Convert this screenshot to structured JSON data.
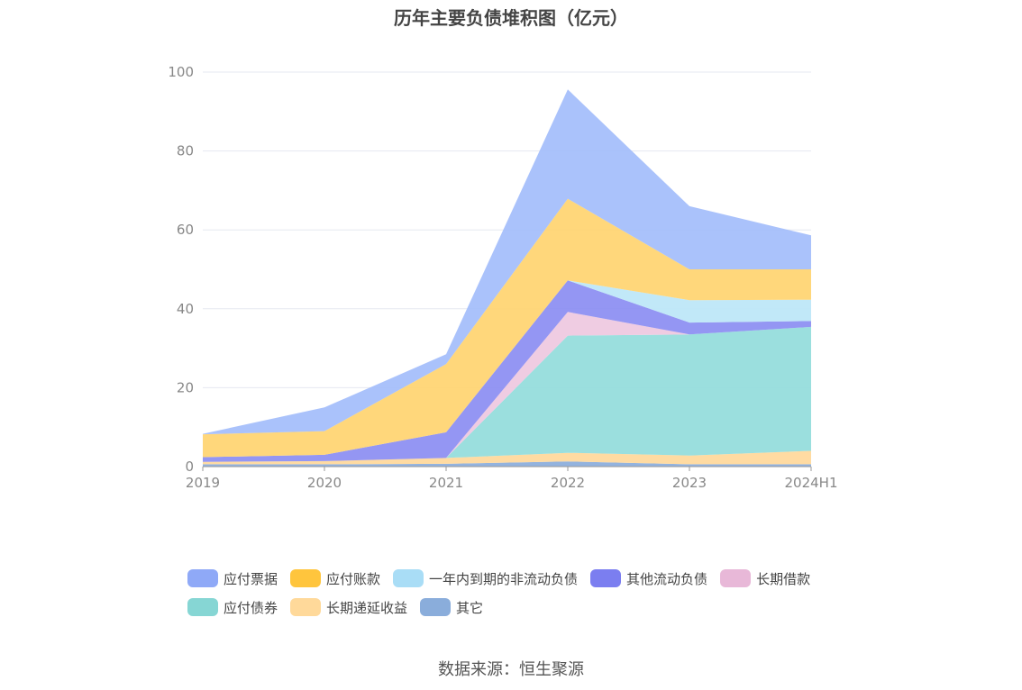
{
  "chart_data": {
    "type": "area",
    "stacked": true,
    "title": "历年主要负债堆积图（亿元）",
    "categories": [
      "2019",
      "2020",
      "2021",
      "2022",
      "2023",
      "2024H1"
    ],
    "ylim": [
      0,
      100
    ],
    "yticks": [
      0,
      20,
      40,
      60,
      80,
      100
    ],
    "grid": true,
    "legend_position": "bottom",
    "series": [
      {
        "name": "其它",
        "color": "#8aaddb",
        "values": [
          0.6,
          0.6,
          0.7,
          1.3,
          0.6,
          0.6
        ]
      },
      {
        "name": "长期递延收益",
        "color": "#ffd89a",
        "values": [
          0.6,
          0.8,
          1.5,
          2.2,
          2.2,
          3.4
        ]
      },
      {
        "name": "应付债券",
        "color": "#93dcdb",
        "values": [
          0.0,
          0.0,
          0.0,
          29.7,
          30.7,
          31.4
        ]
      },
      {
        "name": "长期借款",
        "color": "#eec8e0",
        "values": [
          0.0,
          0.0,
          0.0,
          6.0,
          0.0,
          0.0
        ]
      },
      {
        "name": "其他流动负债",
        "color": "#8b8df2",
        "values": [
          1.2,
          1.6,
          6.5,
          8.0,
          3.0,
          1.5
        ]
      },
      {
        "name": "一年内到期的非流动负债",
        "color": "#bce6f7",
        "values": [
          0.0,
          0.0,
          0.0,
          0.0,
          5.7,
          5.4
        ]
      },
      {
        "name": "应付账款",
        "color": "#ffd470",
        "values": [
          5.8,
          6.0,
          17.3,
          20.7,
          7.8,
          7.7
        ]
      },
      {
        "name": "应付票据",
        "color": "#a3bdfb",
        "values": [
          0.1,
          6.0,
          2.5,
          27.7,
          16.0,
          8.6
        ]
      }
    ]
  },
  "legend": [
    {
      "name": "应付票据",
      "color": "#8fa9f7"
    },
    {
      "name": "应付账款",
      "color": "#ffc53d"
    },
    {
      "name": "一年内到期的非流动负债",
      "color": "#a9ddf6"
    },
    {
      "name": "其他流动负债",
      "color": "#7b7ef0"
    },
    {
      "name": "长期借款",
      "color": "#e8b8d8"
    },
    {
      "name": "应付债券",
      "color": "#86d6d4"
    },
    {
      "name": "长期递延收益",
      "color": "#ffd99a"
    },
    {
      "name": "其它",
      "color": "#8aaddb"
    }
  ],
  "source": "数据来源：恒生聚源"
}
